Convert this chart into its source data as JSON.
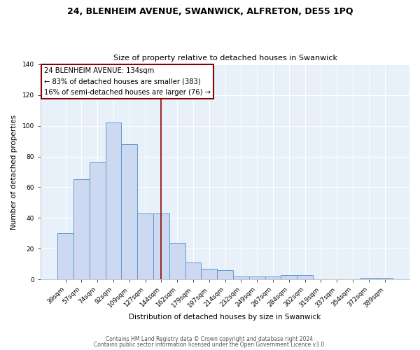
{
  "title1": "24, BLENHEIM AVENUE, SWANWICK, ALFRETON, DE55 1PQ",
  "title2": "Size of property relative to detached houses in Swanwick",
  "xlabel": "Distribution of detached houses by size in Swanwick",
  "ylabel": "Number of detached properties",
  "bar_labels": [
    "39sqm",
    "57sqm",
    "74sqm",
    "92sqm",
    "109sqm",
    "127sqm",
    "144sqm",
    "162sqm",
    "179sqm",
    "197sqm",
    "214sqm",
    "232sqm",
    "249sqm",
    "267sqm",
    "284sqm",
    "302sqm",
    "319sqm",
    "337sqm",
    "354sqm",
    "372sqm",
    "389sqm"
  ],
  "bar_heights": [
    30,
    65,
    76,
    102,
    88,
    43,
    43,
    24,
    11,
    7,
    6,
    2,
    2,
    2,
    3,
    3,
    0,
    0,
    0,
    1,
    1
  ],
  "bar_color": "#ccd9f0",
  "bar_edge_color": "#5b9bd5",
  "vline_x": 6.0,
  "vline_color": "#8B0000",
  "annotation_line1": "24 BLENHEIM AVENUE: 134sqm",
  "annotation_line2": "← 83% of detached houses are smaller (383)",
  "annotation_line3": "16% of semi-detached houses are larger (76) →",
  "annotation_box_edge": "#8B0000",
  "ylim": [
    0,
    140
  ],
  "yticks": [
    0,
    20,
    40,
    60,
    80,
    100,
    120,
    140
  ],
  "footer1": "Contains HM Land Registry data © Crown copyright and database right 2024.",
  "footer2": "Contains public sector information licensed under the Open Government Licence v3.0.",
  "plot_bg_color": "#e8f0fa",
  "fig_bg_color": "#ffffff",
  "grid_color": "#ffffff",
  "title1_fontsize": 9.0,
  "title2_fontsize": 8.0,
  "annotation_fontsize": 7.2,
  "axis_label_fontsize": 7.5,
  "tick_fontsize": 6.5,
  "footer_fontsize": 5.5
}
